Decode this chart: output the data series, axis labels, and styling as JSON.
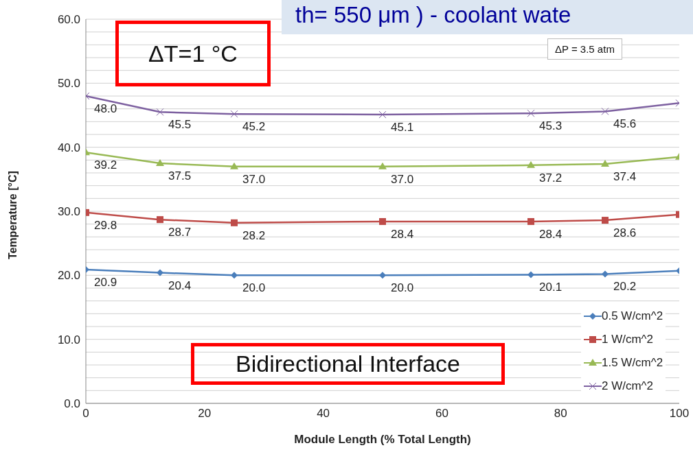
{
  "chart_data": {
    "type": "line",
    "title": "th= 550 μm ) - coolant wate",
    "xlabel": "Module Length (% Total Length)",
    "ylabel": "Temperature [°C]",
    "annotations": [
      "ΔT=1 °C",
      "Bidirectional Interface",
      "ΔP = 3.5 atm"
    ],
    "x": [
      0,
      12.5,
      25,
      50,
      75,
      87.5,
      100
    ],
    "series": [
      {
        "name": "0.5 W/cm^2",
        "color": "#4a7ebb",
        "marker": "diamond",
        "values": [
          20.9,
          20.4,
          20.0,
          20.0,
          20.1,
          20.2,
          20.7
        ],
        "value_labels": [
          "20.9",
          "20.4",
          "20.0",
          "20.0",
          "20.1",
          "20.2",
          null
        ]
      },
      {
        "name": "1 W/cm^2",
        "color": "#be4b48",
        "marker": "square",
        "values": [
          29.8,
          28.7,
          28.2,
          28.4,
          28.4,
          28.6,
          29.5
        ],
        "value_labels": [
          "29.8",
          "28.7",
          "28.2",
          "28.4",
          "28.4",
          "28.6",
          null
        ]
      },
      {
        "name": "1.5 W/cm^2",
        "color": "#98b954",
        "marker": "triangle",
        "values": [
          39.2,
          37.5,
          37.0,
          37.0,
          37.2,
          37.4,
          38.5
        ],
        "value_labels": [
          "39.2",
          "37.5",
          "37.0",
          "37.0",
          "37.2",
          "37.4",
          null
        ]
      },
      {
        "name": "2 W/cm^2",
        "color": "#7d60a0",
        "marker": "cross",
        "values": [
          48.0,
          45.5,
          45.2,
          45.1,
          45.3,
          45.6,
          46.9
        ],
        "value_labels": [
          "48.0",
          "45.5",
          "45.2",
          "45.1",
          "45.3",
          "45.6",
          null
        ]
      }
    ],
    "xlim": [
      0,
      100
    ],
    "xticks": [
      0,
      20,
      40,
      60,
      80,
      100
    ],
    "ylim": [
      0,
      60
    ],
    "yticks": [
      {
        "value": 0,
        "label": "0.0"
      },
      {
        "value": 2,
        "label": null
      },
      {
        "value": 4,
        "label": null
      },
      {
        "value": 6,
        "label": null
      },
      {
        "value": 8,
        "label": null
      },
      {
        "value": 10,
        "label": "10.0"
      },
      {
        "value": 12,
        "label": null
      },
      {
        "value": 14,
        "label": null
      },
      {
        "value": 16,
        "label": null
      },
      {
        "value": 18,
        "label": null
      },
      {
        "value": 20,
        "label": "20.0"
      },
      {
        "value": 22,
        "label": null
      },
      {
        "value": 24,
        "label": null
      },
      {
        "value": 26,
        "label": null
      },
      {
        "value": 28,
        "label": null
      },
      {
        "value": 30,
        "label": "30.0"
      },
      {
        "value": 32,
        "label": null
      },
      {
        "value": 34,
        "label": null
      },
      {
        "value": 36,
        "label": null
      },
      {
        "value": 38,
        "label": null
      },
      {
        "value": 40,
        "label": "40.0"
      },
      {
        "value": 42,
        "label": null
      },
      {
        "value": 44,
        "label": null
      },
      {
        "value": 46,
        "label": null
      },
      {
        "value": 48,
        "label": null
      },
      {
        "value": 50,
        "label": "50.0"
      },
      {
        "value": 52,
        "label": null
      },
      {
        "value": 54,
        "label": null
      },
      {
        "value": 56,
        "label": null
      },
      {
        "value": 58,
        "label": null
      },
      {
        "value": 60,
        "label": "60.0"
      }
    ],
    "grid": "y",
    "legend": "bottom right"
  }
}
